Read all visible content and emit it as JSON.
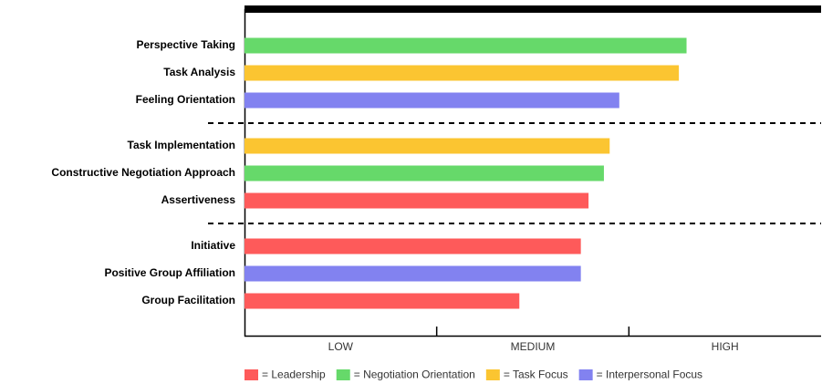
{
  "chart_data": {
    "type": "bar",
    "orientation": "horizontal",
    "categories": [
      "Perspective Taking",
      "Task Analysis",
      "Feeling Orientation",
      "Task Implementation",
      "Constructive Negotiation Approach",
      "Assertiveness",
      "Initiative",
      "Positive Group Affiliation",
      "Group Facilitation"
    ],
    "values": [
      2.3,
      2.26,
      1.95,
      1.9,
      1.87,
      1.79,
      1.75,
      1.75,
      1.43
    ],
    "colors": [
      "#66d96a",
      "#fbc531",
      "#8282f0",
      "#fbc531",
      "#66d96a",
      "#fe5a5a",
      "#fe5a5a",
      "#8282f0",
      "#fe5a5a"
    ],
    "xlim": [
      0,
      3
    ],
    "xticks": [
      {
        "value": 0.5,
        "label": "LOW"
      },
      {
        "value": 1.5,
        "label": "MEDIUM"
      },
      {
        "value": 2.5,
        "label": "HIGH"
      }
    ],
    "legend": [
      {
        "name": "= Leadership",
        "color": "#fe5a5a"
      },
      {
        "name": "= Negotiation Orientation",
        "color": "#66d96a"
      },
      {
        "name": "= Task Focus",
        "color": "#fbc531"
      },
      {
        "name": "= Interpersonal Focus",
        "color": "#8282f0"
      }
    ]
  }
}
